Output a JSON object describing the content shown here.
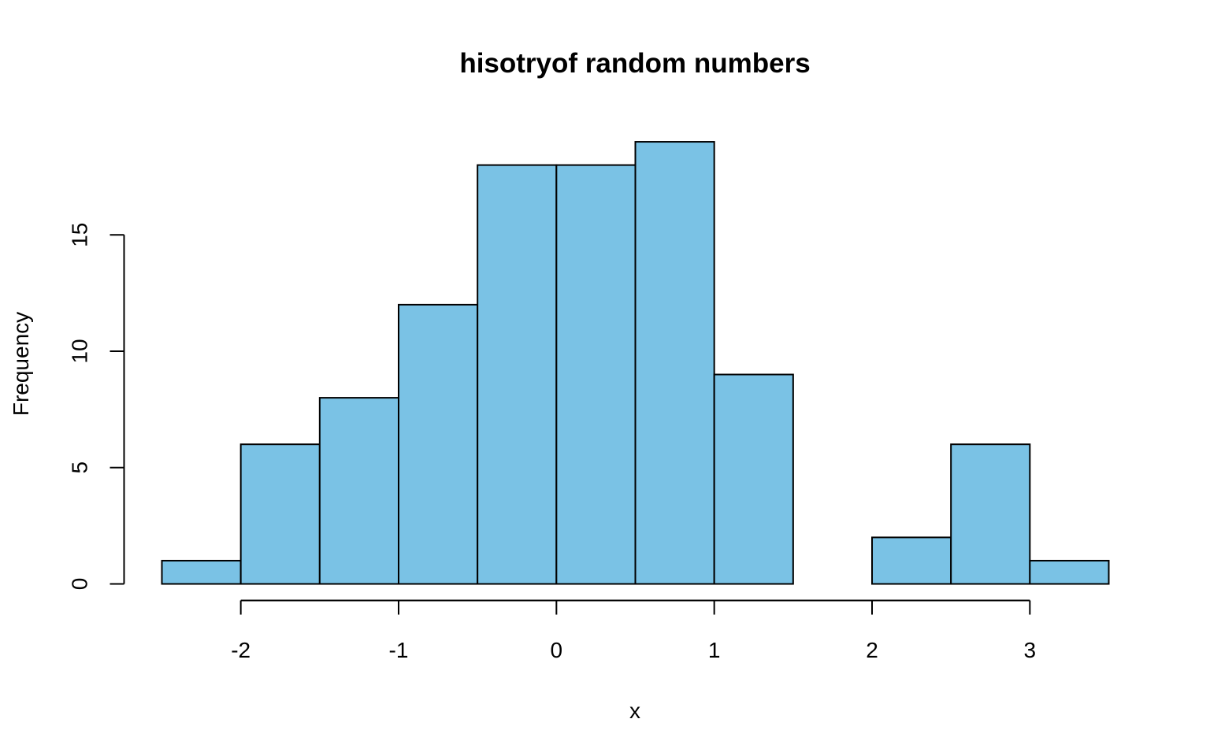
{
  "chart_data": {
    "type": "bar",
    "subtype": "histogram",
    "title": "hisotryof random numbers",
    "xlabel": "x",
    "ylabel": "Frequency",
    "bins": [
      {
        "x0": -2.5,
        "x1": -2.0,
        "count": 1
      },
      {
        "x0": -2.0,
        "x1": -1.5,
        "count": 6
      },
      {
        "x0": -1.5,
        "x1": -1.0,
        "count": 8
      },
      {
        "x0": -1.0,
        "x1": -0.5,
        "count": 12
      },
      {
        "x0": -0.5,
        "x1": 0.0,
        "count": 18
      },
      {
        "x0": 0.0,
        "x1": 0.5,
        "count": 18
      },
      {
        "x0": 0.5,
        "x1": 1.0,
        "count": 19
      },
      {
        "x0": 1.0,
        "x1": 1.5,
        "count": 9
      },
      {
        "x0": 1.5,
        "x1": 2.0,
        "count": 0
      },
      {
        "x0": 2.0,
        "x1": 2.5,
        "count": 2
      },
      {
        "x0": 2.5,
        "x1": 3.0,
        "count": 6
      },
      {
        "x0": 3.0,
        "x1": 3.5,
        "count": 1
      }
    ],
    "xticks": [
      -2,
      -1,
      0,
      1,
      2,
      3
    ],
    "xtick_labels": [
      "-2",
      "-1",
      "0",
      "1",
      "2",
      "3"
    ],
    "yticks": [
      0,
      5,
      10,
      15
    ],
    "ytick_labels": [
      "0",
      "5",
      "10",
      "15"
    ],
    "xlim": [
      -2.5,
      3.5
    ],
    "ylim": [
      0,
      19
    ],
    "grid": false,
    "legend": "none",
    "bar_color": "#7AC2E5",
    "edge_color": "#000000"
  }
}
